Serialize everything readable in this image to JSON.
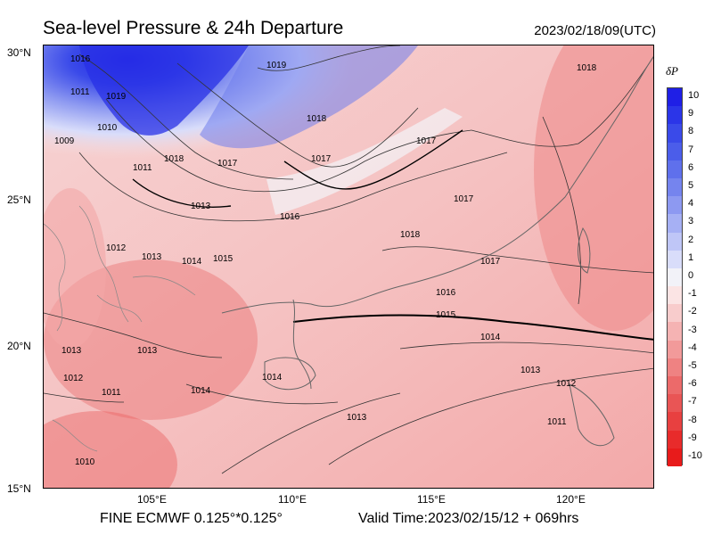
{
  "header": {
    "title": "Sea-level Pressure & 24h Departure",
    "valid_utc": "2023/02/18/09(UTC)"
  },
  "footer": {
    "model": "FINE ECMWF 0.125°*0.125°",
    "valid_time": "Valid Time:2023/02/15/12 + 069hrs"
  },
  "map": {
    "lat_ticks": [
      "30°N",
      "25°N",
      "20°N",
      "15°N"
    ],
    "lon_ticks": [
      "105°E",
      "110°E",
      "115°E",
      "120°E"
    ],
    "isobar_labels": [
      "1016",
      "1019",
      "1019",
      "1011",
      "1010",
      "1009",
      "1018",
      "1017",
      "1018",
      "1017",
      "1011",
      "1013",
      "1016",
      "1017",
      "1018",
      "1017",
      "1017",
      "1018",
      "1012",
      "1013",
      "1014",
      "1015",
      "1016",
      "1015",
      "1014",
      "1013",
      "1013",
      "1012",
      "1011",
      "1013",
      "1014",
      "1014",
      "1013",
      "1012",
      "1011",
      "1010"
    ]
  },
  "colorbar": {
    "title": "δP",
    "labels": [
      "10",
      "9",
      "8",
      "7",
      "6",
      "5",
      "4",
      "3",
      "2",
      "1",
      "0",
      "-1",
      "-2",
      "-3",
      "-4",
      "-5",
      "-6",
      "-7",
      "-8",
      "-9",
      "-10"
    ],
    "colors": [
      "#1f1fe6",
      "#2b35e8",
      "#3a4ae9",
      "#4b5dea",
      "#5f70ec",
      "#7584ee",
      "#8d99f1",
      "#a6b0f4",
      "#bfc6f7",
      "#d9ddfa",
      "#f2f2f8",
      "#fbe4e4",
      "#f8cccc",
      "#f5b3b3",
      "#f29a9a",
      "#ef8282",
      "#ec6a6a",
      "#e95555",
      "#e84040",
      "#e82b2b",
      "#e81b1b"
    ]
  }
}
